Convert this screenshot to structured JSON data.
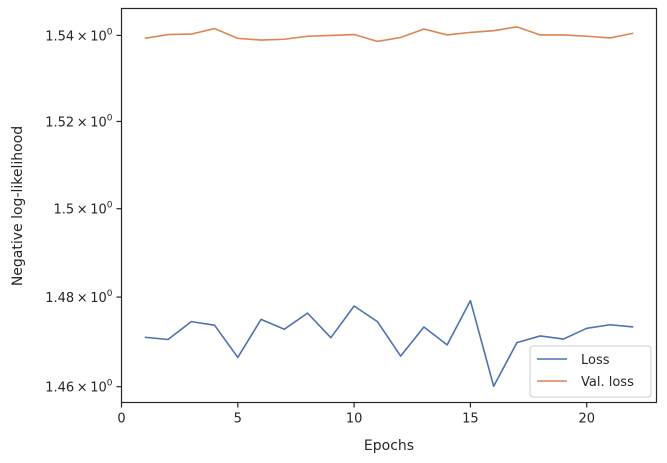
{
  "chart_data": {
    "type": "line",
    "xlabel": "Epochs",
    "ylabel": "Negative log-likelihood",
    "xlim": [
      0,
      23
    ],
    "ylim": [
      1.4565,
      1.5463
    ],
    "y_scale": "log",
    "grid": false,
    "legend_position": "lower-right",
    "x_ticks": [
      0,
      5,
      10,
      15,
      20
    ],
    "x_tick_labels": [
      "0",
      "5",
      "10",
      "15",
      "20"
    ],
    "y_ticks": [
      1.46,
      1.48,
      1.5,
      1.52,
      1.54
    ],
    "y_tick_mantissas": [
      "1.46",
      "1.48",
      "1.5",
      "1.52",
      "1.54"
    ],
    "y_tick_base": "10",
    "y_tick_exponent": "0",
    "x": [
      1,
      2,
      3,
      4,
      5,
      6,
      7,
      8,
      9,
      10,
      11,
      12,
      13,
      14,
      15,
      16,
      17,
      18,
      19,
      20,
      21,
      22
    ],
    "series": [
      {
        "name": "Loss",
        "color": "#4c72b0",
        "values": [
          1.471,
          1.4705,
          1.4745,
          1.4737,
          1.4665,
          1.475,
          1.4728,
          1.4764,
          1.4709,
          1.478,
          1.4745,
          1.4668,
          1.4733,
          1.4693,
          1.4792,
          1.4601,
          1.4698,
          1.4713,
          1.4706,
          1.473,
          1.4738,
          1.4733
        ]
      },
      {
        "name": "Val. loss",
        "color": "#dd8452",
        "values": [
          1.5393,
          1.5402,
          1.5403,
          1.5416,
          1.5393,
          1.5389,
          1.5391,
          1.5398,
          1.54,
          1.5402,
          1.5386,
          1.5395,
          1.5415,
          1.5401,
          1.5407,
          1.5411,
          1.542,
          1.5401,
          1.5401,
          1.5398,
          1.5394,
          1.5405
        ]
      }
    ]
  }
}
